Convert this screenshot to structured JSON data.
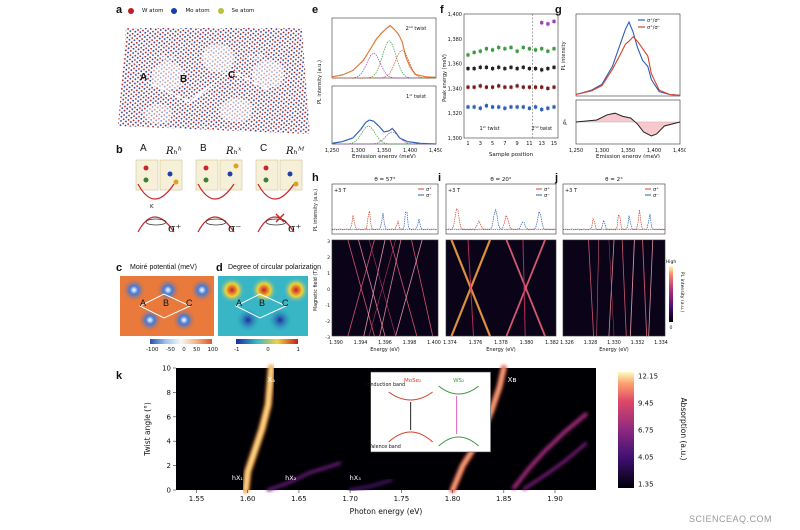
{
  "panel_letters": [
    "a",
    "b",
    "c",
    "d",
    "e",
    "f",
    "g",
    "h",
    "i",
    "j",
    "k"
  ],
  "legend_a": {
    "w": "W atom",
    "mo": "Mo atom",
    "se": "Se atom"
  },
  "regions_a": {
    "r1": "Rₕʰ",
    "r2": "Rₕˣ",
    "r3": "Rₕᴹ",
    "A": "A",
    "B": "B",
    "C": "C"
  },
  "panel_b": {
    "labels": [
      "A",
      "B",
      "C"
    ],
    "stack": [
      "Rₕʰ",
      "Rₕˣ",
      "Rₕᴹ"
    ],
    "arrows": [
      "σ⁺",
      "σ⁻",
      "σ⁺"
    ],
    "k": "K"
  },
  "panel_c": {
    "title": "Moiré potential (meV)",
    "ticks": [
      "-100",
      "-50",
      "0",
      "50",
      "100"
    ],
    "labels": [
      "A",
      "B",
      "C"
    ]
  },
  "panel_d": {
    "title": "Degree of circular polarization",
    "ticks": [
      "-1",
      "0",
      "1"
    ],
    "labels": [
      "A",
      "B",
      "C"
    ]
  },
  "colors": {
    "blue": "#2b5fb8",
    "red": "#d8402a",
    "orange": "#e87a30",
    "green": "#3b9a3f",
    "purple": "#9a3fb8",
    "black": "#222222",
    "pink": "#e0608a"
  },
  "watermark": "SCIENCEAQ.COM",
  "chart_data": [
    {
      "id": "e",
      "type": "line",
      "xlabel": "Emission energy (meV)",
      "ylabel": "PL intensity (a.u.)",
      "xlim": [
        1250,
        1450
      ],
      "x_ticks": [
        "1,250",
        "1,300",
        "1,350",
        "1,400",
        "1,450"
      ],
      "annotations": [
        "2ⁿᵈ twist",
        "1ˢᵗ twist"
      ],
      "series": [
        {
          "values": [
            [
              1250,
              0.02
            ],
            [
              1270,
              0.05
            ],
            [
              1290,
              0.12
            ],
            [
              1310,
              0.28
            ],
            [
              1325,
              0.48
            ],
            [
              1335,
              0.62
            ],
            [
              1345,
              0.72
            ],
            [
              1355,
              0.8
            ],
            [
              1362,
              0.84
            ],
            [
              1370,
              0.78
            ],
            [
              1378,
              0.7
            ],
            [
              1385,
              0.58
            ],
            [
              1392,
              0.34
            ],
            [
              1400,
              0.18
            ],
            [
              1410,
              0.06
            ],
            [
              1430,
              0.02
            ],
            [
              1450,
              0.01
            ]
          ]
        },
        {
          "values": [
            [
              1250,
              0.01
            ],
            [
              1270,
              0.04
            ],
            [
              1290,
              0.1
            ],
            [
              1305,
              0.24
            ],
            [
              1315,
              0.36
            ],
            [
              1322,
              0.4
            ],
            [
              1330,
              0.38
            ],
            [
              1340,
              0.3
            ],
            [
              1350,
              0.2
            ],
            [
              1360,
              0.22
            ],
            [
              1366,
              0.26
            ],
            [
              1372,
              0.2
            ],
            [
              1380,
              0.1
            ],
            [
              1395,
              0.04
            ],
            [
              1420,
              0.01
            ],
            [
              1450,
              0.0
            ]
          ]
        }
      ]
    },
    {
      "id": "f",
      "type": "scatter",
      "xlabel": "Sample position",
      "ylabel": "Peak energy (meV)",
      "ylim": [
        1300,
        1400
      ],
      "y_ticks": [
        "1,300",
        "1,320",
        "1,340",
        "1,360",
        "1,380",
        "1,400"
      ],
      "x_ticks": [
        "1",
        "3",
        "5",
        "7",
        "9",
        "11",
        "13",
        "15"
      ],
      "annotations": [
        "1ˢᵗ twist",
        "2ⁿᵈ twist"
      ],
      "series": [
        {
          "values": [
            [
              1,
              1367
            ],
            [
              2,
              1369
            ],
            [
              3,
              1370
            ],
            [
              4,
              1372
            ],
            [
              5,
              1371
            ],
            [
              6,
              1373
            ],
            [
              7,
              1372
            ],
            [
              8,
              1373
            ],
            [
              9,
              1370
            ],
            [
              10,
              1373
            ],
            [
              11,
              1372
            ],
            [
              12,
              1371
            ],
            [
              13,
              1372
            ],
            [
              14,
              1370
            ],
            [
              15,
              1372
            ]
          ]
        },
        {
          "values": [
            [
              1,
              1356
            ],
            [
              2,
              1356
            ],
            [
              3,
              1357
            ],
            [
              4,
              1357
            ],
            [
              5,
              1356
            ],
            [
              6,
              1357
            ],
            [
              7,
              1356
            ],
            [
              8,
              1357
            ],
            [
              9,
              1356
            ],
            [
              10,
              1357
            ],
            [
              11,
              1356
            ],
            [
              12,
              1356
            ],
            [
              13,
              1355
            ],
            [
              14,
              1356
            ],
            [
              15,
              1357
            ]
          ]
        },
        {
          "values": [
            [
              1,
              1341
            ],
            [
              2,
              1341
            ],
            [
              3,
              1342
            ],
            [
              4,
              1341
            ],
            [
              5,
              1341
            ],
            [
              6,
              1342
            ],
            [
              7,
              1341
            ],
            [
              8,
              1341
            ],
            [
              9,
              1342
            ],
            [
              10,
              1341
            ],
            [
              11,
              1341
            ],
            [
              12,
              1341
            ],
            [
              13,
              1341
            ],
            [
              14,
              1340
            ],
            [
              15,
              1341
            ]
          ]
        },
        {
          "values": [
            [
              1,
              1325
            ],
            [
              2,
              1325
            ],
            [
              3,
              1324
            ],
            [
              4,
              1326
            ],
            [
              5,
              1325
            ],
            [
              6,
              1325
            ],
            [
              7,
              1324
            ],
            [
              8,
              1325
            ],
            [
              9,
              1325
            ],
            [
              10,
              1325
            ],
            [
              11,
              1324
            ],
            [
              12,
              1325
            ],
            [
              13,
              1323
            ],
            [
              14,
              1324
            ],
            [
              15,
              1325
            ]
          ]
        },
        {
          "values": [
            [
              13,
              1393
            ],
            [
              14,
              1392
            ],
            [
              15,
              1394
            ]
          ]
        }
      ]
    },
    {
      "id": "g",
      "type": "line",
      "xlabel": "Emission energy (meV)",
      "ylabel": "PL intensity",
      "ylabel2": "ρₕ",
      "xlim": [
        1250,
        1450
      ],
      "x_ticks": [
        "1,250",
        "1,300",
        "1,350",
        "1,400",
        "1,450"
      ],
      "series": [
        {
          "name": "σ⁺/σ⁺",
          "values": [
            [
              1250,
              0.02
            ],
            [
              1280,
              0.08
            ],
            [
              1300,
              0.16
            ],
            [
              1320,
              0.4
            ],
            [
              1335,
              0.7
            ],
            [
              1345,
              0.9
            ],
            [
              1352,
              1.0
            ],
            [
              1360,
              0.86
            ],
            [
              1368,
              0.66
            ],
            [
              1378,
              0.48
            ],
            [
              1388,
              0.4
            ],
            [
              1395,
              0.22
            ],
            [
              1410,
              0.06
            ],
            [
              1430,
              0.02
            ],
            [
              1450,
              0.01
            ]
          ]
        },
        {
          "name": "σ⁺/σ⁻",
          "values": [
            [
              1250,
              0.02
            ],
            [
              1280,
              0.07
            ],
            [
              1300,
              0.14
            ],
            [
              1320,
              0.36
            ],
            [
              1335,
              0.56
            ],
            [
              1345,
              0.7
            ],
            [
              1352,
              0.74
            ],
            [
              1360,
              0.8
            ],
            [
              1368,
              0.74
            ],
            [
              1378,
              0.64
            ],
            [
              1388,
              0.54
            ],
            [
              1395,
              0.3
            ],
            [
              1410,
              0.08
            ],
            [
              1430,
              0.02
            ],
            [
              1450,
              0.01
            ]
          ]
        }
      ],
      "dcp": [
        [
          1250,
          0.0
        ],
        [
          1290,
          0.05
        ],
        [
          1310,
          0.18
        ],
        [
          1325,
          0.22
        ],
        [
          1340,
          0.14
        ],
        [
          1355,
          0.1
        ],
        [
          1368,
          -0.05
        ],
        [
          1380,
          -0.25
        ],
        [
          1395,
          -0.35
        ],
        [
          1405,
          -0.3
        ],
        [
          1420,
          -0.1
        ],
        [
          1450,
          0.0
        ]
      ]
    },
    {
      "id": "h",
      "type": "line",
      "title": "θ = 57°",
      "field": "+3 T",
      "xlabel": "Energy (eV)",
      "ylabel": "PL intensity (a.u.)",
      "ylabel2": "Magnetic field (T)",
      "x_ticks": [
        "1.390",
        "1.394",
        "1.396",
        "1.398",
        "1.400"
      ],
      "y_ticks": [
        "3",
        "2",
        "1",
        "0",
        "-1",
        "-2",
        "-3"
      ],
      "legend": [
        "σ⁺",
        "σ⁻"
      ]
    },
    {
      "id": "i",
      "type": "line",
      "title": "θ = 20°",
      "field": "+3 T",
      "xlabel": "Energy (eV)",
      "x_ticks": [
        "1.374",
        "1.376",
        "1.378",
        "1.380",
        "1.382"
      ],
      "legend": [
        "σ⁺",
        "σ⁻"
      ]
    },
    {
      "id": "j",
      "type": "line",
      "title": "θ = 2°",
      "field": "+3 T",
      "xlabel": "Energy (eV)",
      "ylabel2": "PL intensity (a.u.)",
      "x_ticks": [
        "1.326",
        "1.328",
        "1.330",
        "1.332",
        "1.334"
      ],
      "legend": [
        "σ⁺",
        "σ⁻"
      ],
      "colorbar": [
        "High",
        "0"
      ]
    },
    {
      "id": "k",
      "type": "heatmap",
      "xlabel": "Photon energy (eV)",
      "ylabel": "Twist angle (°)",
      "xlim": [
        1.53,
        1.94
      ],
      "ylim": [
        0,
        10
      ],
      "x_ticks": [
        "1.55",
        "1.60",
        "1.65",
        "1.70",
        "1.75",
        "1.80",
        "1.85",
        "1.90"
      ],
      "y_ticks": [
        "0",
        "2",
        "4",
        "6",
        "8",
        "10"
      ],
      "colorbar_label": "Absorption (a.u.)",
      "colorbar_ticks": [
        "12.15",
        "9.45",
        "6.75",
        "4.05",
        "1.35"
      ],
      "peaks": [
        "Xₐ",
        "Xʙ",
        "hX₁",
        "hX₂",
        "hX₃"
      ],
      "inset": {
        "left": "MoSe₂",
        "right": "WS₂",
        "top": "Conduction band",
        "bottom": "Valence band"
      }
    }
  ]
}
